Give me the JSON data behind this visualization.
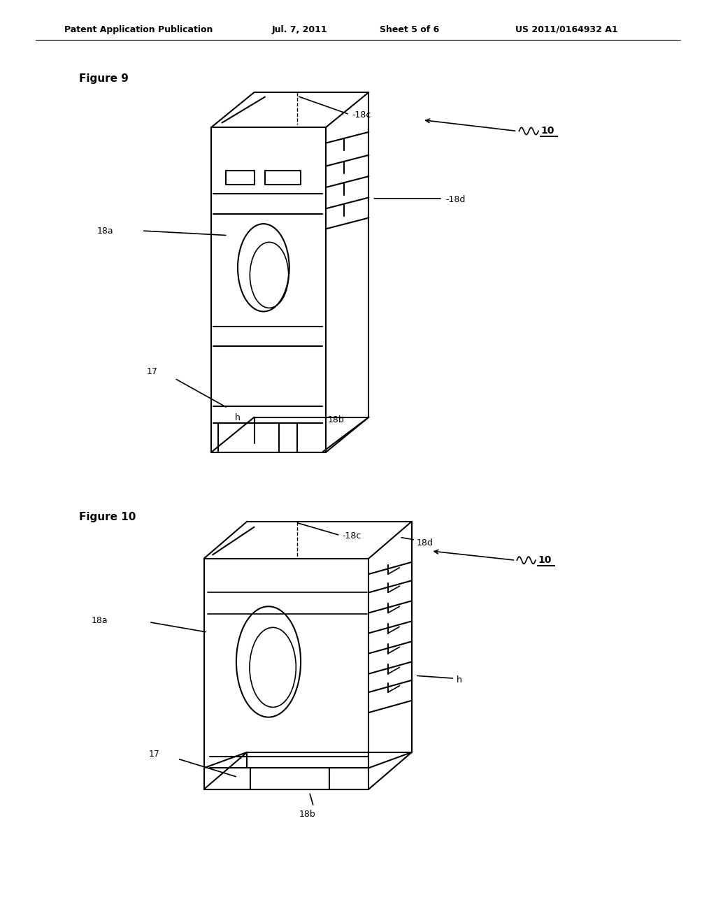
{
  "bg_color": "#ffffff",
  "line_color": "#000000",
  "line_width": 1.5,
  "header_text": "Patent Application Publication",
  "header_date": "Jul. 7, 2011",
  "header_sheet": "Sheet 5 of 6",
  "header_patent": "US 2011/0164932 A1",
  "fig9_label": "Figure 9",
  "fig10_label": "Figure 10"
}
